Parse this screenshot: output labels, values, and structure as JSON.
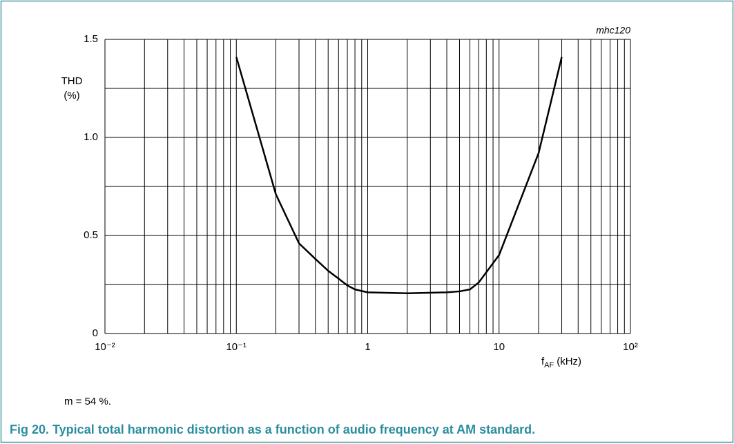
{
  "chart_data": {
    "type": "line",
    "annotation": "mhc120",
    "ylabel": [
      "THD",
      "(%)"
    ],
    "xlabel": {
      "symbol": "f",
      "subscript": "AF",
      "unit": "(kHz)"
    },
    "note": "m = 54 %.",
    "caption": "Fig 20. Typical total harmonic distortion as a function of audio frequency at AM standard.",
    "xscale": "log",
    "grid": true,
    "color": "#000000",
    "xlim": [
      0.01,
      100
    ],
    "xticks": [
      {
        "value": 0.01,
        "label": "10⁻²"
      },
      {
        "value": 0.1,
        "label": "10⁻¹"
      },
      1,
      10,
      {
        "value": 100,
        "label": "10²"
      }
    ],
    "ylim": [
      0,
      1.5
    ],
    "yticks": [
      0,
      0.5,
      {
        "value": 1,
        "label": "1.0"
      },
      1.5
    ],
    "yminor": [
      0.25,
      0.75,
      1.25
    ],
    "x": [
      0.1,
      0.2,
      0.3,
      0.4,
      0.5,
      0.6,
      0.7,
      0.8,
      1,
      2,
      4,
      5,
      6,
      7,
      10,
      20,
      30
    ],
    "values": [
      1.41,
      0.71,
      0.46,
      0.38,
      0.32,
      0.28,
      0.245,
      0.225,
      0.21,
      0.205,
      0.21,
      0.215,
      0.225,
      0.26,
      0.4,
      0.92,
      1.41
    ]
  }
}
